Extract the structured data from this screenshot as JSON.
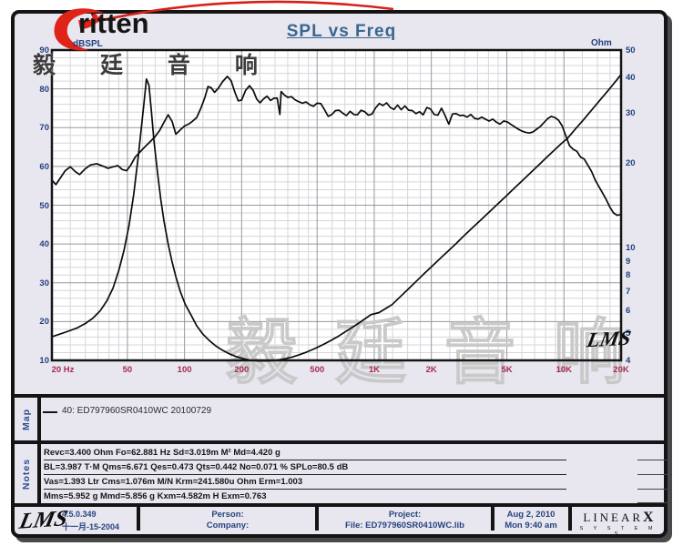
{
  "title": "SPL vs Freq",
  "logo": {
    "brand_text": "ritten",
    "header_cn": "毅廷音响",
    "header_cn_spaced": "毅 廷 音 响",
    "swoosh_color": "#e02318"
  },
  "watermark_text": "毅廷音响",
  "chart_sig": "LMS",
  "colors": {
    "panel_bg": "#e8e6ef",
    "plot_bg": "#ffffff",
    "grid_minor": "#d6d6dc",
    "grid_major": "#97979f",
    "curve": "#0b0b0b",
    "x_label": "#a82a52",
    "y_label": "#24427e",
    "title": "#3a678f",
    "watermark": "#c9c9c9"
  },
  "chart_data": {
    "type": "line",
    "title": "SPL vs Freq",
    "x_axis": {
      "scale": "log",
      "min": 20,
      "max": 20000,
      "tick_values": [
        20,
        50,
        100,
        200,
        500,
        1000,
        2000,
        5000,
        10000,
        20000
      ],
      "tick_labels": [
        "20 Hz",
        "50",
        "100",
        "200",
        "500",
        "1K",
        "2K",
        "5K",
        "10K",
        "20K"
      ]
    },
    "y_left": {
      "label": "dBSPL",
      "scale": "linear",
      "min": 10,
      "max": 90,
      "tick_values": [
        90,
        80,
        70,
        60,
        50,
        40,
        30,
        20,
        10
      ]
    },
    "y_right": {
      "label": "Ohm",
      "scale": "log",
      "min": 4,
      "max": 50,
      "tick_values": [
        50,
        40,
        30,
        20,
        10,
        9,
        8,
        7,
        6,
        5,
        4
      ]
    },
    "grid": {
      "minor_db_step": 2,
      "major_db_step": 10,
      "minor_freq_multiples": [
        1.25,
        1.5,
        1.75,
        2,
        2.5,
        3,
        3.5,
        4,
        4.5,
        5,
        6,
        7,
        8,
        9
      ]
    },
    "series": [
      {
        "name": "SPL",
        "axis": "left",
        "points": [
          [
            20,
            56.5
          ],
          [
            21,
            55.3
          ],
          [
            22,
            56.8
          ],
          [
            23.5,
            58.9
          ],
          [
            25,
            59.9
          ],
          [
            26.5,
            58.7
          ],
          [
            28,
            57.9
          ],
          [
            30,
            59.4
          ],
          [
            32,
            60.4
          ],
          [
            34.5,
            60.7
          ],
          [
            37,
            60.1
          ],
          [
            39.5,
            59.5
          ],
          [
            42,
            59.9
          ],
          [
            44.5,
            60.2
          ],
          [
            47,
            59.2
          ],
          [
            49.5,
            58.9
          ],
          [
            52,
            60.3
          ],
          [
            55,
            62.4
          ],
          [
            58,
            63.6
          ],
          [
            62,
            65.1
          ],
          [
            66,
            66.4
          ],
          [
            70,
            67.7
          ],
          [
            74,
            69.3
          ],
          [
            78,
            71.4
          ],
          [
            82,
            73.3
          ],
          [
            86,
            71.6
          ],
          [
            90,
            68.3
          ],
          [
            95,
            69.4
          ],
          [
            100,
            70.4
          ],
          [
            105,
            70.9
          ],
          [
            110,
            71.6
          ],
          [
            116,
            72.6
          ],
          [
            122,
            75.0
          ],
          [
            128,
            77.8
          ],
          [
            133,
            80.6
          ],
          [
            138,
            80.3
          ],
          [
            144,
            79.1
          ],
          [
            151,
            80.2
          ],
          [
            159,
            81.9
          ],
          [
            168,
            83.2
          ],
          [
            176,
            82.1
          ],
          [
            184,
            79.2
          ],
          [
            192,
            76.9
          ],
          [
            200,
            77.1
          ],
          [
            210,
            79.6
          ],
          [
            220,
            80.8
          ],
          [
            230,
            79.6
          ],
          [
            240,
            77.4
          ],
          [
            250,
            76.4
          ],
          [
            261,
            77.4
          ],
          [
            272,
            78.1
          ],
          [
            284,
            77.0
          ],
          [
            296,
            77.6
          ],
          [
            308,
            77.6
          ],
          [
            318,
            73.4
          ],
          [
            323,
            79.3
          ],
          [
            336,
            78.4
          ],
          [
            350,
            77.8
          ],
          [
            366,
            78.0
          ],
          [
            382,
            77.2
          ],
          [
            400,
            76.7
          ],
          [
            418,
            76.3
          ],
          [
            437,
            76.6
          ],
          [
            457,
            75.9
          ],
          [
            478,
            75.5
          ],
          [
            500,
            76.3
          ],
          [
            523,
            76.2
          ],
          [
            547,
            74.6
          ],
          [
            572,
            72.9
          ],
          [
            598,
            73.4
          ],
          [
            625,
            74.4
          ],
          [
            653,
            74.5
          ],
          [
            683,
            73.7
          ],
          [
            714,
            73.1
          ],
          [
            746,
            74.2
          ],
          [
            780,
            73.4
          ],
          [
            815,
            73.3
          ],
          [
            852,
            74.5
          ],
          [
            891,
            74.1
          ],
          [
            931,
            73.2
          ],
          [
            973,
            73.5
          ],
          [
            1017,
            75.1
          ],
          [
            1063,
            76.2
          ],
          [
            1111,
            75.7
          ],
          [
            1162,
            76.4
          ],
          [
            1215,
            75.2
          ],
          [
            1270,
            74.7
          ],
          [
            1328,
            75.8
          ],
          [
            1388,
            74.6
          ],
          [
            1451,
            75.6
          ],
          [
            1517,
            74.5
          ],
          [
            1586,
            74.4
          ],
          [
            1658,
            73.6
          ],
          [
            1733,
            74.1
          ],
          [
            1812,
            73.3
          ],
          [
            1894,
            75.2
          ],
          [
            1980,
            74.8
          ],
          [
            2070,
            73.4
          ],
          [
            2164,
            73.2
          ],
          [
            2262,
            75.0
          ],
          [
            2365,
            73.1
          ],
          [
            2472,
            70.9
          ],
          [
            2584,
            73.5
          ],
          [
            2702,
            73.6
          ],
          [
            2824,
            73.1
          ],
          [
            2953,
            73.2
          ],
          [
            3087,
            72.7
          ],
          [
            3227,
            73.4
          ],
          [
            3373,
            72.4
          ],
          [
            3526,
            72.2
          ],
          [
            3687,
            72.7
          ],
          [
            3854,
            72.2
          ],
          [
            4029,
            71.7
          ],
          [
            4212,
            72.2
          ],
          [
            4404,
            71.4
          ],
          [
            4604,
            70.9
          ],
          [
            4813,
            71.7
          ],
          [
            5031,
            71.5
          ],
          [
            5260,
            70.8
          ],
          [
            5499,
            70.2
          ],
          [
            5749,
            69.6
          ],
          [
            6010,
            69.1
          ],
          [
            6283,
            68.8
          ],
          [
            6568,
            68.6
          ],
          [
            6867,
            68.9
          ],
          [
            7179,
            69.6
          ],
          [
            7505,
            70.3
          ],
          [
            7846,
            71.3
          ],
          [
            8202,
            72.3
          ],
          [
            8575,
            72.9
          ],
          [
            8964,
            72.6
          ],
          [
            9371,
            71.9
          ],
          [
            9797,
            70.4
          ],
          [
            10242,
            67.8
          ],
          [
            10707,
            65.3
          ],
          [
            11193,
            64.4
          ],
          [
            11701,
            63.9
          ],
          [
            12233,
            62.4
          ],
          [
            12788,
            61.9
          ],
          [
            13369,
            60.3
          ],
          [
            13976,
            58.7
          ],
          [
            14610,
            56.5
          ],
          [
            15273,
            54.8
          ],
          [
            15966,
            53.2
          ],
          [
            16691,
            51.5
          ],
          [
            17449,
            49.5
          ],
          [
            18241,
            48.0
          ],
          [
            19069,
            47.4
          ],
          [
            20000,
            47.6
          ]
        ]
      },
      {
        "name": "Impedance",
        "axis": "right",
        "points": [
          [
            20,
            4.85
          ],
          [
            22,
            4.95
          ],
          [
            24,
            5.05
          ],
          [
            27,
            5.2
          ],
          [
            30,
            5.4
          ],
          [
            33,
            5.65
          ],
          [
            36,
            6.0
          ],
          [
            39,
            6.5
          ],
          [
            42,
            7.2
          ],
          [
            45,
            8.3
          ],
          [
            48,
            9.8
          ],
          [
            51,
            12.0
          ],
          [
            54,
            15.5
          ],
          [
            57,
            21.0
          ],
          [
            59,
            26.0
          ],
          [
            61,
            32.0
          ],
          [
            63,
            39.5
          ],
          [
            65,
            37.5
          ],
          [
            67,
            30.0
          ],
          [
            69,
            24.0
          ],
          [
            72,
            18.5
          ],
          [
            75,
            14.8
          ],
          [
            78,
            12.4
          ],
          [
            82,
            10.3
          ],
          [
            86,
            8.9
          ],
          [
            90,
            7.9
          ],
          [
            95,
            7.0
          ],
          [
            101,
            6.3
          ],
          [
            108,
            5.8
          ],
          [
            116,
            5.3
          ],
          [
            125,
            4.95
          ],
          [
            135,
            4.7
          ],
          [
            146,
            4.5
          ],
          [
            158,
            4.35
          ],
          [
            172,
            4.22
          ],
          [
            188,
            4.12
          ],
          [
            205,
            4.05
          ],
          [
            225,
            4.0
          ],
          [
            250,
            3.98
          ],
          [
            275,
            3.98
          ],
          [
            300,
            4.0
          ],
          [
            330,
            4.04
          ],
          [
            365,
            4.1
          ],
          [
            400,
            4.18
          ],
          [
            440,
            4.28
          ],
          [
            485,
            4.4
          ],
          [
            535,
            4.54
          ],
          [
            590,
            4.7
          ],
          [
            650,
            4.88
          ],
          [
            715,
            5.08
          ],
          [
            790,
            5.3
          ],
          [
            870,
            5.54
          ],
          [
            960,
            5.8
          ],
          [
            1060,
            5.9
          ],
          [
            1150,
            6.1
          ],
          [
            1243,
            6.3
          ],
          [
            1370,
            6.71
          ],
          [
            1510,
            7.14
          ],
          [
            1670,
            7.63
          ],
          [
            1840,
            8.12
          ],
          [
            2030,
            8.64
          ],
          [
            2240,
            9.2
          ],
          [
            2470,
            9.79
          ],
          [
            2720,
            10.4
          ],
          [
            3000,
            11.1
          ],
          [
            3310,
            11.8
          ],
          [
            3650,
            12.55
          ],
          [
            4030,
            13.37
          ],
          [
            4440,
            14.2
          ],
          [
            4900,
            15.12
          ],
          [
            5400,
            16.1
          ],
          [
            5960,
            17.15
          ],
          [
            6570,
            18.25
          ],
          [
            7250,
            19.43
          ],
          [
            7990,
            20.7
          ],
          [
            8820,
            22.0
          ],
          [
            9720,
            23.4
          ],
          [
            10400,
            24.3
          ],
          [
            11500,
            26.3
          ],
          [
            12700,
            28.4
          ],
          [
            14000,
            30.7
          ],
          [
            15500,
            33.3
          ],
          [
            17100,
            36.0
          ],
          [
            18800,
            38.9
          ],
          [
            20000,
            41.0
          ]
        ]
      }
    ]
  },
  "map": {
    "label": "Map",
    "legend": "40: ED797960SR0410WC   20100729"
  },
  "notes": {
    "label": "Notes",
    "lines": [
      "Revc=3.400 Ohm  Fo=62.881 Hz  Sd=3.019m M²  Md=4.420 g",
      "BL=3.987 T·M  Qms=6.671  Qes=0.473  Qts=0.442  No=0.071 %  SPLo=80.5 dB",
      "Vas=1.393 Ltr  Cms=1.076m M/N  Krm=241.580u Ohm  Erm=1.003",
      "Mms=5.952 g  Mmd=5.856 g  Kxm=4.582m H  Exm=0.763"
    ]
  },
  "footer": {
    "lms_logo": "LMS",
    "version": "4.5.0.349",
    "build_date": "十一月-15-2004",
    "person_label": "Person:",
    "company_label": "Company:",
    "project_label": "Project:",
    "file_label": "File: ED797960SR0410WC.lib",
    "date": "Aug  2, 2010",
    "time": "Mon  9:40 am",
    "brand_linear": "LINEAR",
    "brand_x": "X",
    "brand_systems": "S Y S T E M S"
  }
}
